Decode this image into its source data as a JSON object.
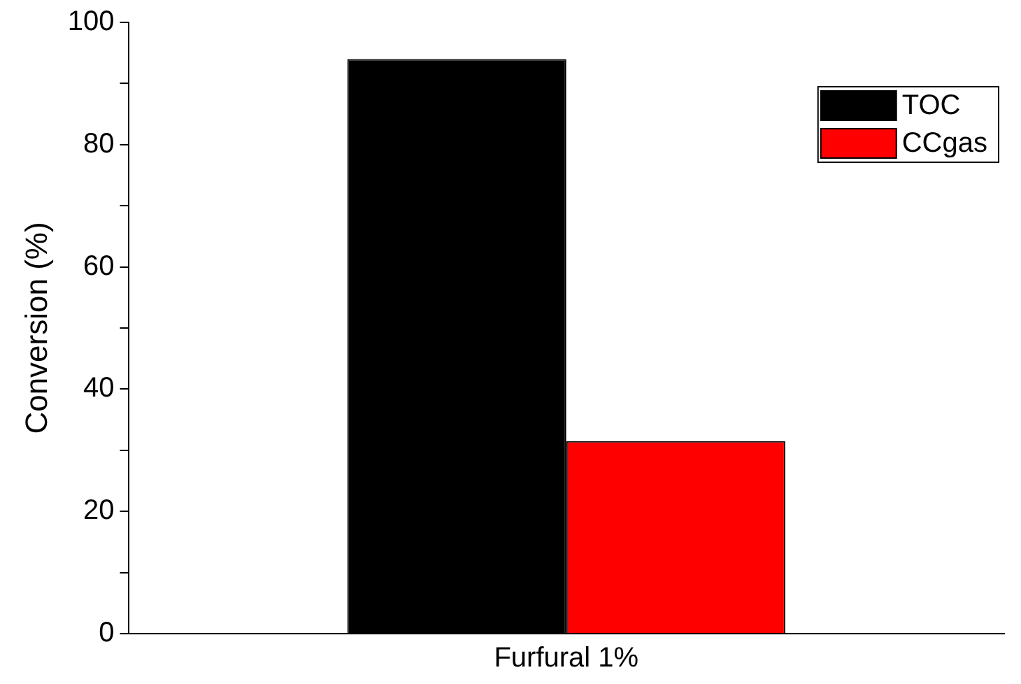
{
  "chart_data": {
    "type": "bar",
    "ylabel": "Conversion (%)",
    "categories": [
      "Furfural 1%"
    ],
    "series": [
      {
        "name": "TOC",
        "color": "#000000",
        "values": [
          94
        ]
      },
      {
        "name": "CCgas",
        "color": "#ff0000",
        "values": [
          31.5
        ]
      }
    ],
    "ylim": [
      0,
      100
    ],
    "yticks": [
      0,
      {
        "value": 10,
        "label": null
      },
      20,
      {
        "value": 30,
        "label": null
      },
      40,
      {
        "value": 50,
        "label": null
      },
      60,
      {
        "value": 70,
        "label": null
      },
      80,
      {
        "value": 90,
        "label": null
      },
      100
    ],
    "grid": false,
    "legend": "top right"
  }
}
